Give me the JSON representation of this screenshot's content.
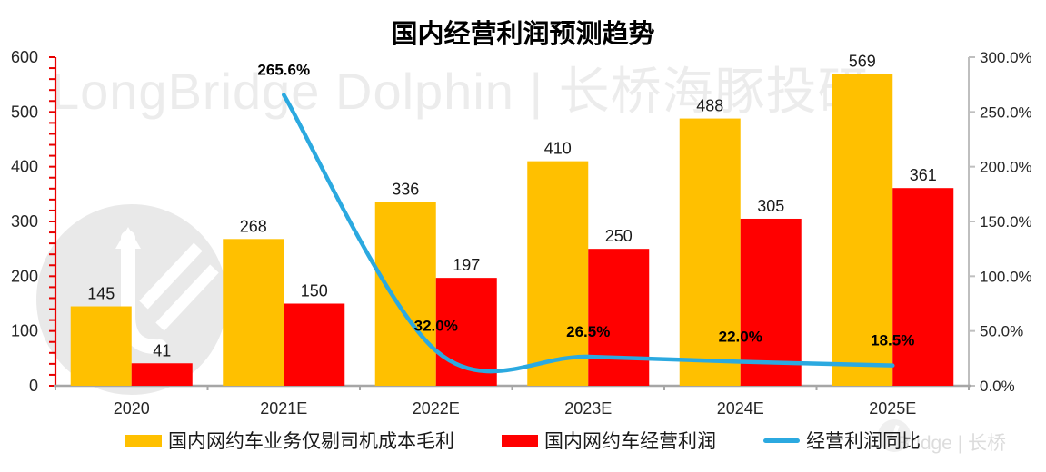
{
  "title": "国内经营利润预测趋势",
  "watermarks": {
    "main": "LongBridge Dolphin | 长桥海豚投研",
    "corner": "Bridge | 长桥"
  },
  "chart_data": {
    "type": "combo",
    "title": "国内经营利润预测趋势",
    "categories": [
      "2020",
      "2021E",
      "2022E",
      "2023E",
      "2024E",
      "2025E"
    ],
    "series": [
      {
        "name": "国内网约车业务仅剔司机成本毛利",
        "type": "bar",
        "axis": "left",
        "color": "#FFC000",
        "values": [
          145,
          268,
          336,
          410,
          488,
          569
        ]
      },
      {
        "name": "国内网约车经营利润",
        "type": "bar",
        "axis": "left",
        "color": "#FF0000",
        "values": [
          41,
          150,
          197,
          250,
          305,
          361
        ]
      },
      {
        "name": "经营利润同比",
        "type": "line",
        "axis": "right",
        "color": "#2BA9E0",
        "values": [
          null,
          265.6,
          32.0,
          26.5,
          22.0,
          18.5
        ],
        "point_labels": [
          "",
          "265.6%",
          "32.0%",
          "26.5%",
          "22.0%",
          "18.5%"
        ]
      }
    ],
    "left_axis": {
      "min": 0,
      "max": 600,
      "step": 100,
      "minor_step": 20,
      "color": "#E80000",
      "tick_labels": [
        "0",
        "100",
        "200",
        "300",
        "400",
        "500",
        "600"
      ]
    },
    "right_axis": {
      "min": 0,
      "max": 300,
      "step": 50,
      "color": "#BFBFBF",
      "tick_labels": [
        "0.0%",
        "50.0%",
        "100.0%",
        "150.0%",
        "200.0%",
        "250.0%",
        "300.0%"
      ]
    },
    "x_axis_color": "#A6A6A6",
    "grid": false,
    "legend_position": "bottom"
  }
}
